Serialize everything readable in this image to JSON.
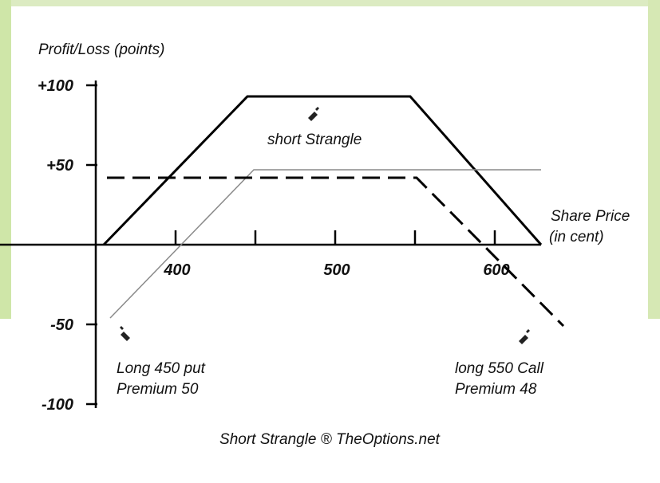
{
  "chart_data": {
    "type": "line",
    "y_label": "Profit/Loss (points)",
    "x_label": [
      "Share Price",
      "(in cent)"
    ],
    "footer": "Short Strangle ® TheOptions.net",
    "xlim": [
      350,
      630
    ],
    "ylim": [
      -100,
      100
    ],
    "xticks": [
      400,
      {
        "value": 450,
        "label": null
      },
      500,
      {
        "value": 550,
        "label": null
      },
      600
    ],
    "yticks": [
      {
        "value": 100,
        "label": "+100"
      },
      {
        "value": 50,
        "label": "+50"
      },
      {
        "value": -50,
        "label": "-50"
      },
      {
        "value": -100,
        "label": "-100"
      }
    ],
    "series": [
      {
        "name": "short Strangle",
        "color": "#000000",
        "style": "solid-thick",
        "x": [
          355,
          445,
          547,
          629
        ],
        "values": [
          0,
          93,
          93,
          0
        ]
      },
      {
        "name": "Long 450 put",
        "note": "Premium 50",
        "color": "#8a8a8a",
        "style": "solid-thin",
        "x": [
          359,
          449,
          629
        ],
        "values": [
          -46,
          47,
          47
        ]
      },
      {
        "name": "long 550 Call",
        "note": "Premium 48",
        "color": "#000000",
        "style": "dashed",
        "x": [
          357,
          551,
          643
        ],
        "values": [
          42,
          42,
          -51
        ]
      }
    ]
  }
}
